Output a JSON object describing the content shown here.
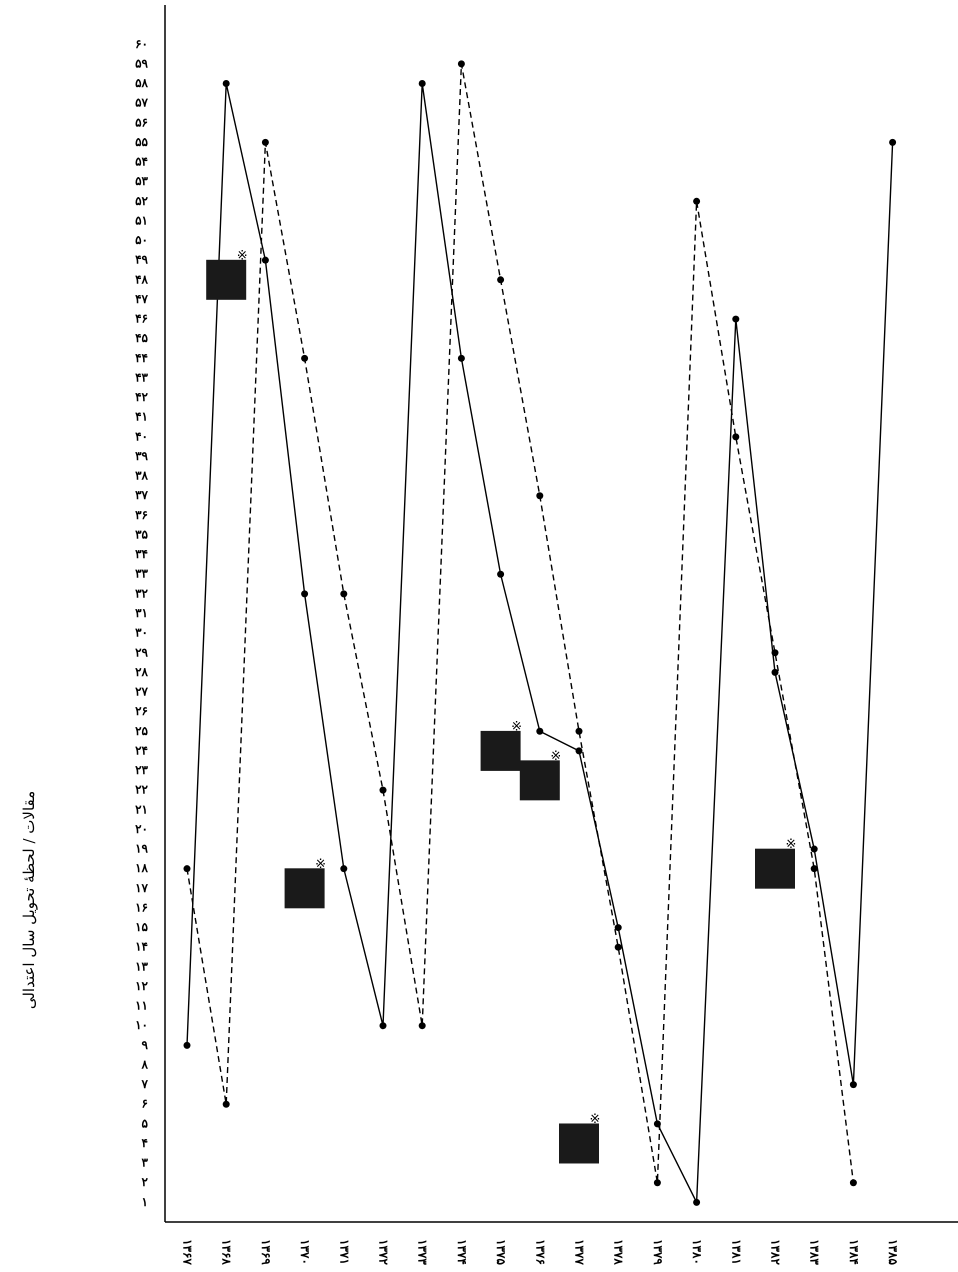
{
  "chart_data": {
    "type": "line",
    "y_label": "مقالات / لحظهٔ تحویل سال اعتدالی",
    "categories": [
      "۱۳۶۷",
      "۱۳۶۸",
      "۱۳۶۹",
      "۱۳۷۰",
      "۱۳۷۱",
      "۱۳۷۲",
      "۱۳۷۳",
      "۱۳۷۴",
      "۱۳۷۵",
      "۱۳۷۶",
      "۱۳۷۷",
      "۱۳۷۸",
      "۱۳۷۹",
      "۱۳۸۰",
      "۱۳۸۱",
      "۱۳۸۲",
      "۱۳۸۳",
      "۱۳۸۴",
      "۱۳۸۵"
    ],
    "series": [
      {
        "color": "#000000",
        "style": "solid",
        "values": [
          9,
          58,
          49,
          32,
          18,
          10,
          58,
          44,
          33,
          25,
          24,
          15,
          5,
          1,
          46,
          28,
          19,
          7,
          55
        ]
      },
      {
        "color": "#000000",
        "style": "dashed",
        "values": [
          18,
          6,
          55,
          44,
          32,
          22,
          10,
          59,
          48,
          37,
          25,
          14,
          2,
          52,
          40,
          29,
          18,
          2,
          null
        ]
      }
    ],
    "highlight_symbol": "※",
    "highlights": [
      {
        "category": "۱۳۶۸",
        "value": 48
      },
      {
        "category": "۱۳۷۰",
        "value": 17
      },
      {
        "category": "۱۳۷۵",
        "value": 24
      },
      {
        "category": "۱۳۷۶",
        "value": 22.5
      },
      {
        "category": "۱۳۷۷",
        "value": 4
      },
      {
        "category": "۱۳۸۲",
        "value": 18
      }
    ],
    "ylim": [
      0,
      62
    ],
    "yticks": [
      {
        "value": 1,
        "label": "۱"
      },
      {
        "value": 2,
        "label": "۲"
      },
      {
        "value": 3,
        "label": "۳"
      },
      {
        "value": 4,
        "label": "۴"
      },
      {
        "value": 5,
        "label": "۵"
      },
      {
        "value": 6,
        "label": "۶"
      },
      {
        "value": 7,
        "label": "۷"
      },
      {
        "value": 8,
        "label": "۸"
      },
      {
        "value": 9,
        "label": "۹"
      },
      {
        "value": 10,
        "label": "۱۰"
      },
      {
        "value": 11,
        "label": "۱۱"
      },
      {
        "value": 12,
        "label": "۱۲"
      },
      {
        "value": 13,
        "label": "۱۳"
      },
      {
        "value": 14,
        "label": "۱۴"
      },
      {
        "value": 15,
        "label": "۱۵"
      },
      {
        "value": 16,
        "label": "۱۶"
      },
      {
        "value": 17,
        "label": "۱۷"
      },
      {
        "value": 18,
        "label": "۱۸"
      },
      {
        "value": 19,
        "label": "۱۹"
      },
      {
        "value": 20,
        "label": "۲۰"
      },
      {
        "value": 21,
        "label": "۲۱"
      },
      {
        "value": 22,
        "label": "۲۲"
      },
      {
        "value": 23,
        "label": "۲۳"
      },
      {
        "value": 24,
        "label": "۲۴"
      },
      {
        "value": 25,
        "label": "۲۵"
      },
      {
        "value": 26,
        "label": "۲۶"
      },
      {
        "value": 27,
        "label": "۲۷"
      },
      {
        "value": 28,
        "label": "۲۸"
      },
      {
        "value": 29,
        "label": "۲۹"
      },
      {
        "value": 30,
        "label": "۳۰"
      },
      {
        "value": 31,
        "label": "۳۱"
      },
      {
        "value": 32,
        "label": "۳۲"
      },
      {
        "value": 33,
        "label": "۳۳"
      },
      {
        "value": 34,
        "label": "۳۴"
      },
      {
        "value": 35,
        "label": "۳۵"
      },
      {
        "value": 36,
        "label": "۳۶"
      },
      {
        "value": 37,
        "label": "۳۷"
      },
      {
        "value": 38,
        "label": "۳۸"
      },
      {
        "value": 39,
        "label": "۳۹"
      },
      {
        "value": 40,
        "label": "۴۰"
      },
      {
        "value": 41,
        "label": "۴۱"
      },
      {
        "value": 42,
        "label": "۴۲"
      },
      {
        "value": 43,
        "label": "۴۳"
      },
      {
        "value": 44,
        "label": "۴۴"
      },
      {
        "value": 45,
        "label": "۴۵"
      },
      {
        "value": 46,
        "label": "۴۶"
      },
      {
        "value": 47,
        "label": "۴۷"
      },
      {
        "value": 48,
        "label": "۴۸"
      },
      {
        "value": 49,
        "label": "۴۹"
      },
      {
        "value": 50,
        "label": "۵۰"
      },
      {
        "value": 51,
        "label": "۵۱"
      },
      {
        "value": 52,
        "label": "۵۲"
      },
      {
        "value": 53,
        "label": "۵۳"
      },
      {
        "value": 54,
        "label": "۵۴"
      },
      {
        "value": 55,
        "label": "۵۵"
      },
      {
        "value": 56,
        "label": "۵۶"
      },
      {
        "value": 57,
        "label": "۵۷"
      },
      {
        "value": 58,
        "label": "۵۸"
      },
      {
        "value": 59,
        "label": "۵۹"
      },
      {
        "value": 60,
        "label": "۶۰"
      }
    ]
  }
}
